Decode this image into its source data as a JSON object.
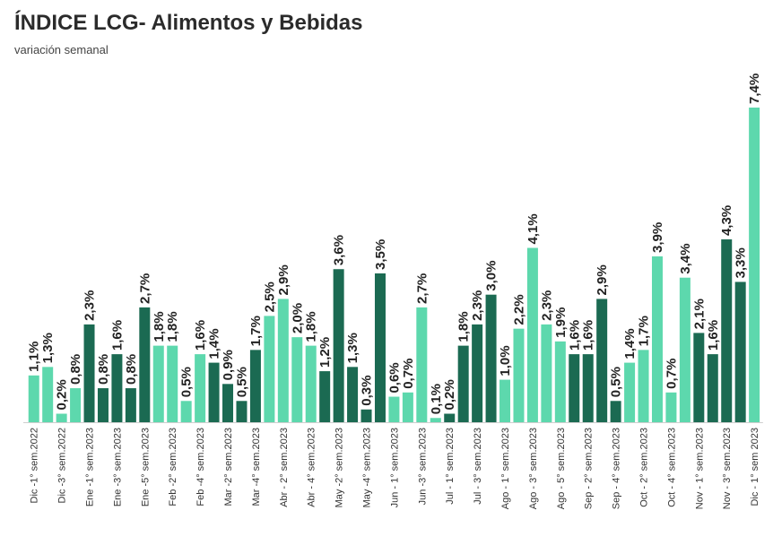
{
  "title": "ÍNDICE LCG- Alimentos y Bebidas",
  "subtitle": "variación semanal",
  "colors": {
    "light": "#5dd8ad",
    "dark": "#1b6a52",
    "axis": "#cfcfcf"
  },
  "chart_data": {
    "type": "bar",
    "title": "ÍNDICE LCG- Alimentos y Bebidas",
    "subtitle": "variación semanal",
    "ylim": [
      0,
      8
    ],
    "grid": false,
    "legend": "none",
    "categories": [
      "Dic -1° sem.2022",
      "",
      "Dic -3° sem.2022",
      "",
      "Ene -1° sem.2023",
      "",
      "Ene -3° sem.2023",
      "",
      "Ene -5° sem.2023",
      "",
      "Feb -2° sem.2023",
      "",
      "Feb -4° sem.2023",
      "",
      "Mar -2° sem.2023",
      "",
      "Mar -4° sem.2023",
      "",
      "Abr - 2° sem.2023",
      "",
      "Abr - 4° sem.2023",
      "",
      "May -2° sem.2023",
      "",
      "May -4° sem.2023",
      "",
      "Jun - 1° sem.2023",
      "",
      "Jun -3° sem.2023",
      "",
      "Jul - 1° sem.2023",
      "",
      "Jul - 3° sem.2023",
      "",
      "Ago - 1° sem.2023",
      "",
      "Ago - 3° sem.2023",
      "",
      "Ago - 5° sem.2023",
      "",
      "Sep - 2° sem.2023",
      "",
      "Sep - 4° sem.2023",
      "",
      "Oct - 2° sem.2023",
      "",
      "Oct - 4° sem.2023",
      "",
      "Nov - 1° sem.2023",
      "",
      "Nov - 3° sem.2023",
      "",
      "Dic - 1° sem 2023"
    ],
    "values": [
      1.1,
      1.3,
      0.2,
      0.8,
      2.3,
      0.8,
      1.6,
      0.8,
      2.7,
      1.8,
      1.8,
      0.5,
      1.6,
      1.4,
      0.9,
      0.5,
      1.7,
      2.5,
      2.9,
      2.0,
      1.8,
      1.2,
      3.6,
      1.3,
      0.3,
      3.5,
      0.6,
      0.7,
      2.7,
      0.1,
      0.2,
      1.8,
      2.3,
      3.0,
      1.0,
      2.2,
      4.1,
      2.3,
      1.9,
      1.6,
      1.6,
      2.9,
      0.5,
      1.4,
      1.7,
      3.9,
      0.7,
      3.4,
      2.1,
      1.6,
      4.3,
      3.3,
      7.4
    ],
    "labels": [
      "1,1%",
      "1,3%",
      "0,2%",
      "0,8%",
      "2,3%",
      "0,8%",
      "1,6%",
      "0,8%",
      "2,7%",
      "1,8%",
      "1,8%",
      "0,5%",
      "1,6%",
      "1,4%",
      "0,9%",
      "0,5%",
      "1,7%",
      "2,5%",
      "2,9%",
      "2,0%",
      "1,8%",
      "1,2%",
      "3,6%",
      "1,3%",
      "0,3%",
      "3,5%",
      "0,6%",
      "0,7%",
      "2,7%",
      "0,1%",
      "0,2%",
      "1,8%",
      "2,3%",
      "3,0%",
      "1,0%",
      "2,2%",
      "4,1%",
      "2,3%",
      "1,9%",
      "1,6%",
      "1,6%",
      "2,9%",
      "0,5%",
      "1,4%",
      "1,7%",
      "3,9%",
      "0,7%",
      "3,4%",
      "2,1%",
      "1,6%",
      "4,3%",
      "3,3%",
      "7,4%"
    ],
    "bar_colors": [
      "light",
      "light",
      "light",
      "light",
      "dark",
      "dark",
      "dark",
      "dark",
      "dark",
      "light",
      "light",
      "light",
      "light",
      "dark",
      "dark",
      "dark",
      "dark",
      "light",
      "light",
      "light",
      "light",
      "dark",
      "dark",
      "dark",
      "dark",
      "dark",
      "light",
      "light",
      "light",
      "light",
      "dark",
      "dark",
      "dark",
      "dark",
      "light",
      "light",
      "light",
      "light",
      "light",
      "dark",
      "dark",
      "dark",
      "dark",
      "light",
      "light",
      "light",
      "light",
      "light",
      "dark",
      "dark",
      "dark",
      "dark",
      "light"
    ]
  }
}
